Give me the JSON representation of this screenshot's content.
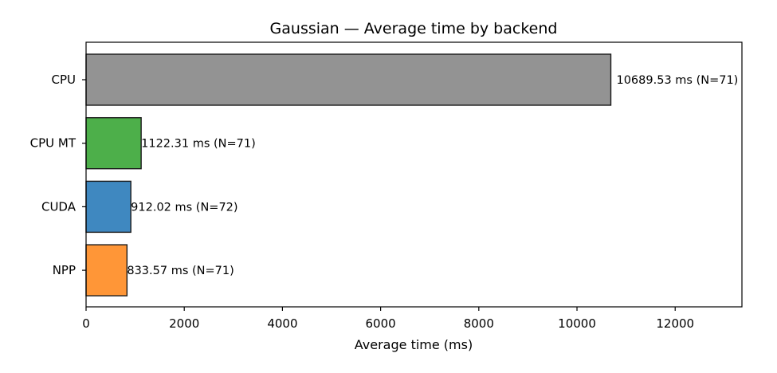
{
  "chart_data": {
    "type": "bar",
    "orientation": "horizontal",
    "title": "Gaussian — Average time by backend",
    "xlabel": "Average time (ms)",
    "ylabel": "",
    "xlim": [
      0,
      13360
    ],
    "xticks": [
      0,
      2000,
      4000,
      6000,
      8000,
      10000,
      12000
    ],
    "grid": false,
    "categories": [
      "CPU",
      "CPU MT",
      "CUDA",
      "NPP"
    ],
    "values": [
      10689.53,
      1122.31,
      912.02,
      833.57
    ],
    "counts": [
      71,
      71,
      72,
      71
    ],
    "data_labels": [
      "10689.53 ms  (N=71)",
      "1122.31 ms  (N=71)",
      "912.02 ms  (N=72)",
      "833.57 ms  (N=71)"
    ],
    "colors": [
      "#939393",
      "#4daf4a",
      "#3f88c0",
      "#ff9637"
    ]
  }
}
